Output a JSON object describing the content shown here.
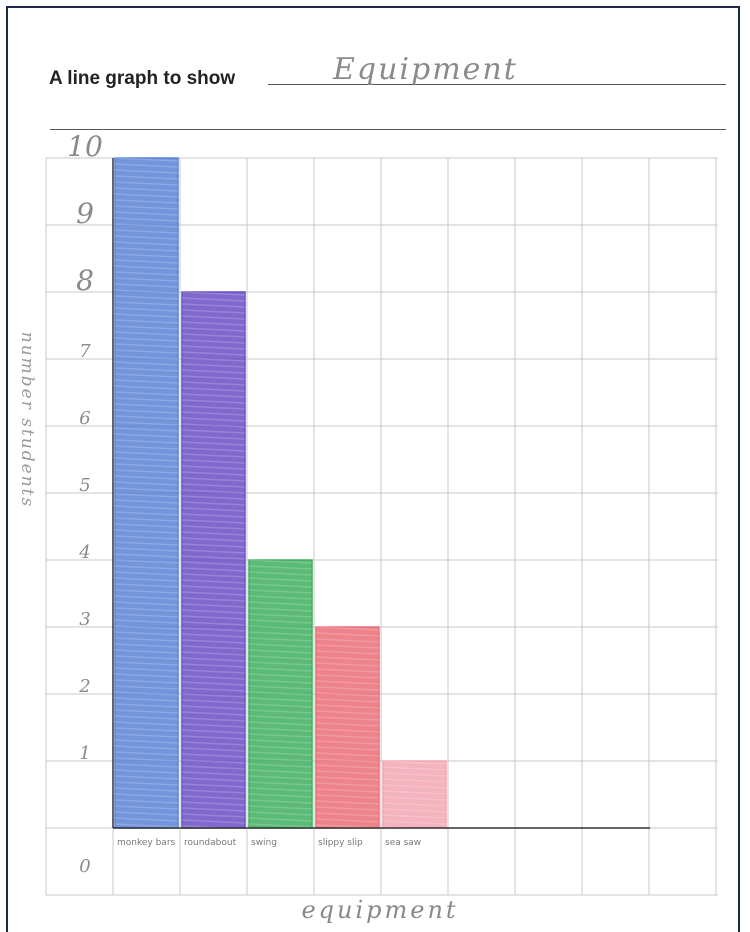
{
  "worksheet": {
    "heading": "A line graph to show",
    "title_handwritten": "Equipment"
  },
  "chart_data": {
    "type": "bar",
    "title": "Equipment",
    "xlabel": "equipment",
    "ylabel": "number students",
    "ylim": [
      0,
      10
    ],
    "y_ticks": [
      0,
      1,
      2,
      3,
      4,
      5,
      6,
      7,
      8,
      9,
      10
    ],
    "categories": [
      "monkey bars",
      "roundabout",
      "swing",
      "slippy slip",
      "sea saw"
    ],
    "values": [
      10,
      8,
      4,
      3,
      1
    ],
    "colors": [
      "#5b82d6",
      "#6a4fc4",
      "#3fae5f",
      "#ea6f78",
      "#f2a6b4"
    ],
    "grid": true
  }
}
